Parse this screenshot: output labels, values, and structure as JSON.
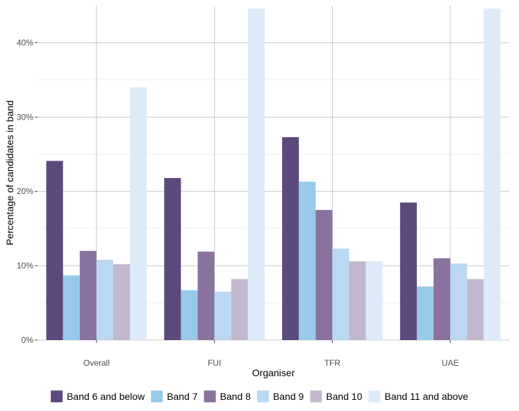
{
  "chart_data": {
    "type": "bar",
    "xlabel": "Organiser",
    "ylabel": "Percentage of candidates in band",
    "categories": [
      "Overall",
      "FUI",
      "TFR",
      "UAE"
    ],
    "ylim": [
      0,
      45
    ],
    "yticks": [
      0,
      10,
      20,
      30,
      40
    ],
    "ytick_labels": [
      "0%",
      "10%",
      "20%",
      "30%",
      "40%"
    ],
    "grid": true,
    "legend_position": "bottom",
    "series": [
      {
        "name": "Band 6 and below",
        "color": "#5c4a7c",
        "values": [
          24.1,
          21.8,
          27.3,
          18.5
        ]
      },
      {
        "name": "Band 7",
        "color": "#98c9ea",
        "values": [
          8.7,
          6.7,
          21.3,
          7.2
        ]
      },
      {
        "name": "Band 8",
        "color": "#8a729e",
        "values": [
          12.0,
          11.9,
          17.5,
          11.0
        ]
      },
      {
        "name": "Band 9",
        "color": "#bad8f2",
        "values": [
          10.8,
          6.5,
          12.3,
          10.3
        ]
      },
      {
        "name": "Band 10",
        "color": "#c2b8cd",
        "values": [
          10.2,
          8.2,
          10.6,
          8.2
        ]
      },
      {
        "name": "Band 11 and above",
        "color": "#ddebf8",
        "values": [
          34.0,
          44.6,
          10.6,
          44.6
        ]
      }
    ]
  }
}
